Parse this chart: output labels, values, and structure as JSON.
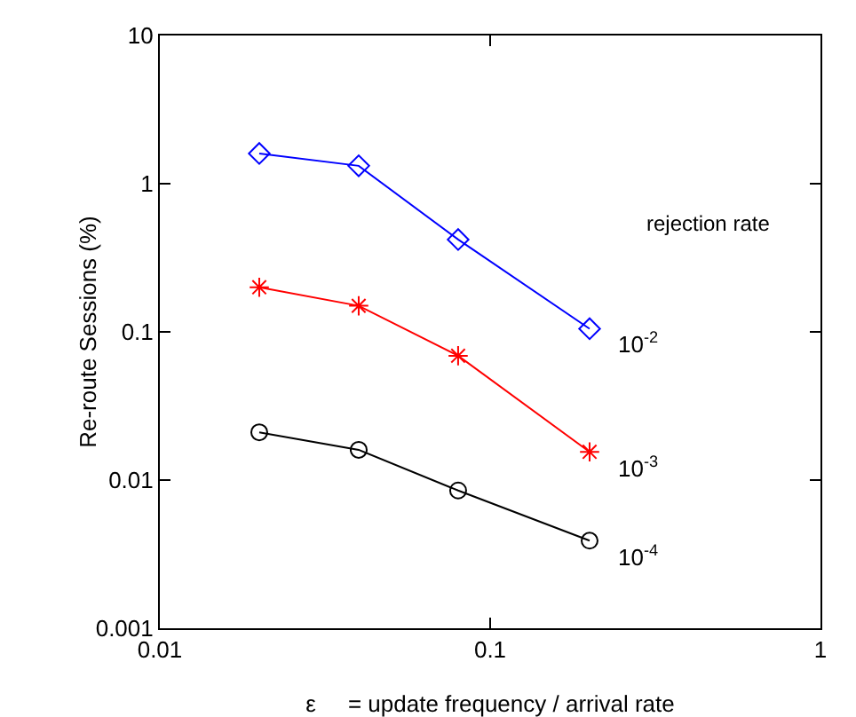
{
  "chart_data": {
    "type": "line",
    "xlabel": "ε     = update frequency / arrival rate",
    "ylabel": "Re-route Sessions (%)",
    "log": "xy",
    "x": [
      0.02,
      0.04,
      0.08,
      0.2
    ],
    "xlim": [
      0.01,
      1
    ],
    "xticks": [
      0.01,
      0.1,
      1
    ],
    "ylim": [
      0.001,
      10
    ],
    "yticks": [
      0.001,
      0.01,
      0.1,
      1,
      10
    ],
    "grid": false,
    "legend": false,
    "legend_title": "rejection rate",
    "series": [
      {
        "name": "10$^{-2}$",
        "color": "#0000ff",
        "marker": "diamond",
        "values": [
          1.6,
          1.32,
          0.42,
          0.105
        ]
      },
      {
        "name": "10$^{-3}$",
        "color": "#ff0000",
        "marker": "cross",
        "values": [
          0.2,
          0.15,
          0.069,
          0.0155
        ]
      },
      {
        "name": "10$^{-4}$",
        "color": "#000000",
        "marker": "circle",
        "values": [
          0.021,
          0.016,
          0.0085,
          0.0039
        ]
      }
    ]
  }
}
